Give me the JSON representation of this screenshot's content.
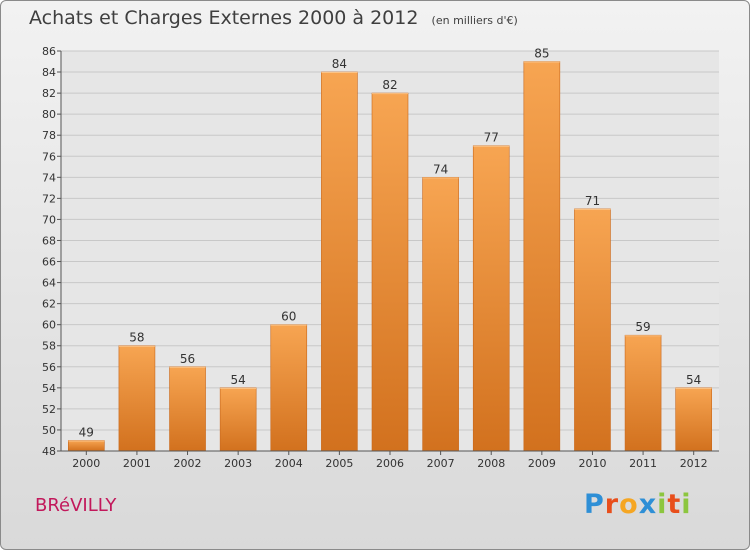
{
  "header": {
    "title": "Achats et Charges Externes 2000 à 2012",
    "unit": "(en milliers d'€)"
  },
  "footer": {
    "commune": "BRéVILLY",
    "brand_letters": [
      "P",
      "r",
      "o",
      "x",
      "i",
      "t",
      "i"
    ],
    "brand_colors": [
      "#2e8fd6",
      "#e84e1b",
      "#f5a623",
      "#2e8fd6",
      "#8cc63f",
      "#e84e1b",
      "#8cc63f"
    ]
  },
  "colors": {
    "bar_light": "#f7a552",
    "bar_dark": "#d2711e",
    "grid": "#c8c8c8",
    "plot_bg": "#e6e6e6",
    "title": "#3f3f3f"
  },
  "chart_data": {
    "type": "bar",
    "title": "Achats et Charges Externes 2000 à 2012",
    "subtitle": "(en milliers d'€)",
    "categories": [
      "2000",
      "2001",
      "2002",
      "2003",
      "2004",
      "2005",
      "2006",
      "2007",
      "2008",
      "2009",
      "2010",
      "2011",
      "2012"
    ],
    "values": [
      49,
      58,
      56,
      54,
      60,
      84,
      82,
      74,
      77,
      85,
      71,
      59,
      54
    ],
    "xlabel": "",
    "ylabel": "",
    "ylim": [
      48,
      86
    ],
    "yticks": [
      48,
      50,
      52,
      54,
      56,
      58,
      60,
      62,
      64,
      66,
      68,
      70,
      72,
      74,
      76,
      78,
      80,
      82,
      84,
      86
    ],
    "grid": true,
    "legend": "none"
  }
}
